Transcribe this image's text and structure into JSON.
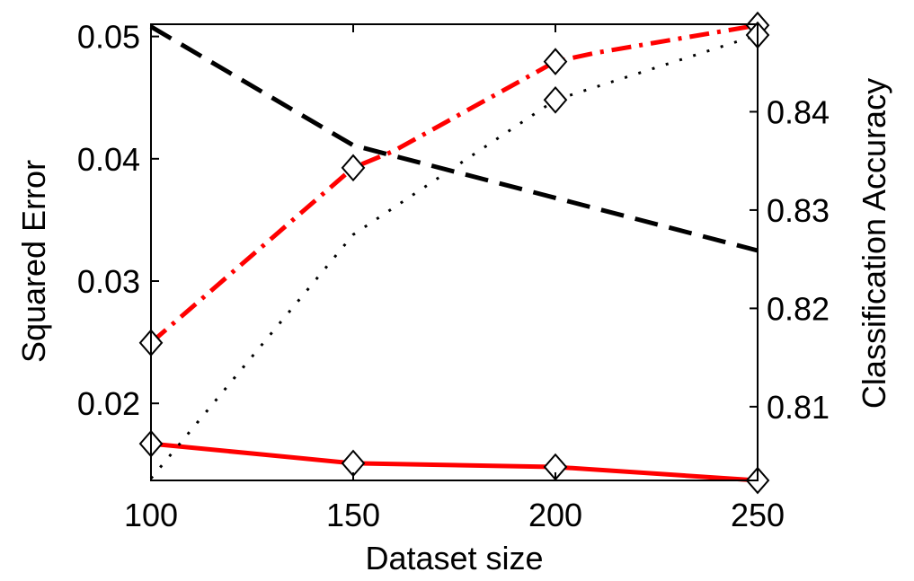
{
  "chart_data": {
    "type": "line",
    "x": [
      100,
      150,
      200,
      250
    ],
    "xlabel": "Dataset size",
    "xlim": [
      100,
      250
    ],
    "xticks": [
      "100",
      "150",
      "200",
      "250"
    ],
    "y_left": {
      "label": "Squared Error",
      "lim": [
        0.0137,
        0.051
      ],
      "ticks": [
        "0.02",
        "0.03",
        "0.04",
        "0.05"
      ]
    },
    "y_right": {
      "label": "Classification Accuracy",
      "lim": [
        0.8025,
        0.8489
      ],
      "ticks": [
        "0.81",
        "0.82",
        "0.83",
        "0.84"
      ]
    },
    "grid": false,
    "legend": null,
    "series": [
      {
        "axis": "left",
        "style": "dashed",
        "color": "#000000",
        "x": [
          100,
          150,
          250
        ],
        "values": [
          0.0508,
          0.0411,
          0.0325
        ],
        "markers": false
      },
      {
        "axis": "left",
        "style": "solid",
        "color": "#ff0000",
        "x": [
          100,
          150,
          200,
          250
        ],
        "values": [
          0.0167,
          0.0151,
          0.0148,
          0.0137
        ],
        "markers": true
      },
      {
        "axis": "right",
        "style": "dashdot",
        "color": "#ff0000",
        "x": [
          100,
          150,
          160,
          200,
          210,
          250
        ],
        "values": [
          0.8165,
          0.8343,
          0.836,
          0.8451,
          0.846,
          0.8488
        ],
        "markers_at": [
          100,
          150,
          200,
          250
        ]
      },
      {
        "axis": "right",
        "style": "dotted",
        "color": "#000000",
        "x": [
          100,
          150,
          200,
          250
        ],
        "values": [
          0.8027,
          0.8275,
          0.8412,
          0.8478
        ],
        "markers_at": [
          200,
          250
        ]
      }
    ]
  }
}
